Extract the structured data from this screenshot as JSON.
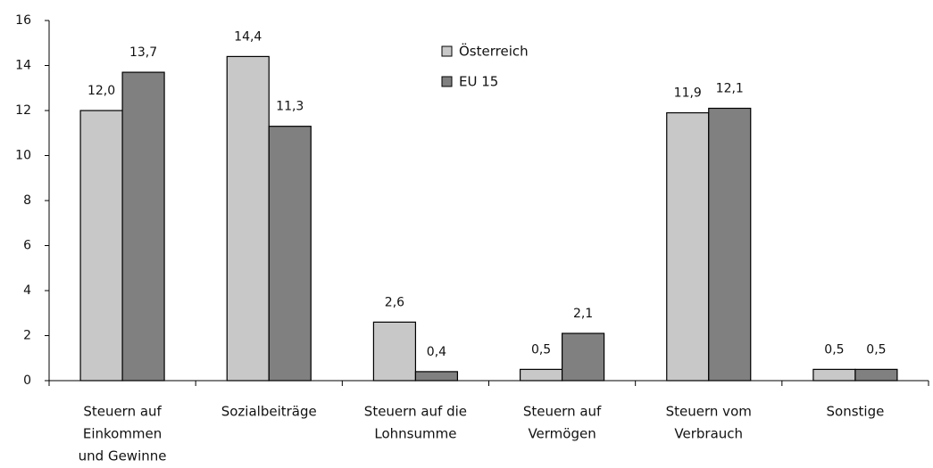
{
  "chart_data": {
    "type": "bar",
    "categories": [
      [
        "Steuern auf",
        "Einkommen",
        "und Gewinne"
      ],
      [
        "Sozialbeiträge"
      ],
      [
        "Steuern auf die",
        "Lohnsumme"
      ],
      [
        "Steuern auf",
        "Vermögen"
      ],
      [
        "Steuern vom",
        "Verbrauch"
      ],
      [
        "Sonstige"
      ]
    ],
    "series": [
      {
        "name": "Österreich",
        "color": "#c8c8c8",
        "values": [
          12.0,
          14.4,
          2.6,
          0.5,
          11.9,
          0.5
        ],
        "value_labels": [
          "12,0",
          "14,4",
          "2,6",
          "0,5",
          "11,9",
          "0,5"
        ]
      },
      {
        "name": "EU 15",
        "color": "#808080",
        "values": [
          13.7,
          11.3,
          0.4,
          2.1,
          12.1,
          0.5
        ],
        "value_labels": [
          "13,7",
          "11,3",
          "0,4",
          "2,1",
          "12,1",
          "0,5"
        ]
      }
    ],
    "ylim": [
      0,
      16
    ],
    "yticks": [
      0,
      2,
      4,
      6,
      8,
      10,
      12,
      14,
      16
    ],
    "grid": false,
    "legend": "top-center"
  }
}
